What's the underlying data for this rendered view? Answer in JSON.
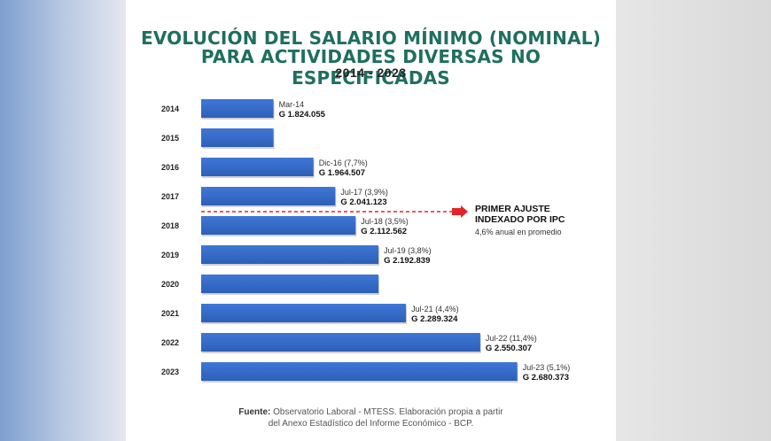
{
  "title_line1": "EVOLUCIÓN DEL SALARIO MÍNIMO (NOMINAL)",
  "title_line2": "PARA ACTIVIDADES DIVERSAS NO ESPECIFICADAS",
  "subtitle": "2014 - 2023",
  "annotation": {
    "title_line1": "PRIMER AJUSTE",
    "title_line2": "INDEXADO POR IPC",
    "subtitle": "4,6% anual en promedio",
    "between_years": [
      "2017",
      "2018"
    ],
    "color": "#e3232b"
  },
  "source": {
    "prefix": "Fuente:",
    "line1": "Observatorio Laboral - MTESS. Elaboración propia a partir",
    "line2": "del Anexo Estadístico del Informe Económico - BCP."
  },
  "colors": {
    "bar": "#3f77d6",
    "bar_dark": "#2d5fb8",
    "title": "#1f6f5f"
  },
  "chart_data": {
    "type": "bar",
    "orientation": "horizontal",
    "title": "EVOLUCIÓN DEL SALARIO MÍNIMO (NOMINAL) PARA ACTIVIDADES DIVERSAS NO ESPECIFICADAS",
    "subtitle": "2014 - 2023",
    "categories": [
      "2014",
      "2015",
      "2016",
      "2017",
      "2018",
      "2019",
      "2020",
      "2021",
      "2022",
      "2023"
    ],
    "values": [
      1824055,
      1824055,
      1964507,
      2041123,
      2112562,
      2192839,
      2192839,
      2289324,
      2550307,
      2680373
    ],
    "labels_top": [
      "Mar-14",
      "",
      "Dic-16 (7,7%)",
      "Jul-17 (3,9%)",
      "Jul-18 (3,5%)",
      "Jul-19 (3,8%)",
      "",
      "Jul-21 (4,4%)",
      "Jul-22 (11,4%)",
      "Jul-23 (5,1%)"
    ],
    "labels_value": [
      "G 1.824.055",
      "",
      "G 1.964.507",
      "G 2.041.123",
      "G 2.112.562",
      "G 2.192.839",
      "",
      "G 2.289.324",
      "G 2.550.307",
      "G 2.680.373"
    ],
    "xlim": [
      1570000,
      2700000
    ]
  }
}
